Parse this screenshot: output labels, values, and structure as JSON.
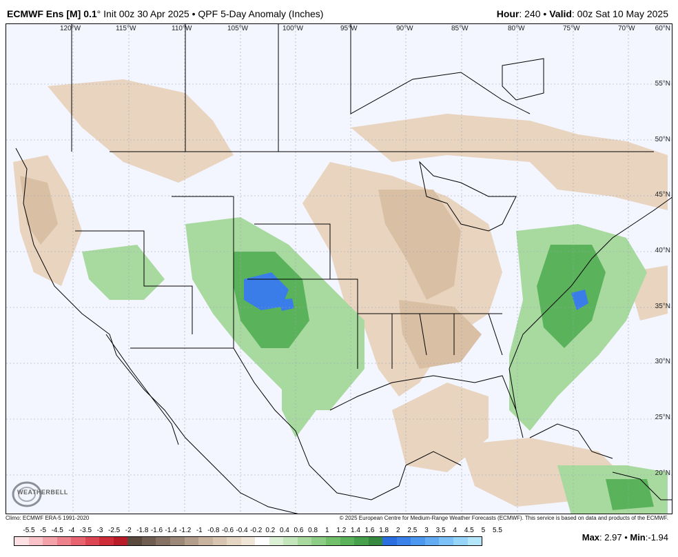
{
  "header": {
    "model": "ECMWF Ens [M] 0.1",
    "degree": "°",
    "init": " Init 00z 30 Apr 2025",
    "bullet": " • ",
    "product": "QPF 5-Day Anomaly (Inches)",
    "hour_label": "Hour",
    "hour_value": ": 240",
    "valid_label": "Valid",
    "valid_value": ": 00z Sat 10 May 2025"
  },
  "map": {
    "lon_labels": [
      "120°W",
      "115°W",
      "110°W",
      "105°W",
      "100°W",
      "95°W",
      "90°W",
      "85°W",
      "80°W",
      "75°W",
      "70°W"
    ],
    "lat_labels": [
      "60°N",
      "55°N",
      "50°N",
      "45°N",
      "40°N",
      "35°N",
      "30°N",
      "25°N",
      "20°N"
    ],
    "logo_text": "WEATHERBELL",
    "colors": {
      "ocean": "#f3f5ff",
      "land_dry": "#e8d4bf",
      "land_dry_dark": "#d9bfa4",
      "wet": "#7cc47c",
      "wet_dark": "#3f9a4f",
      "very_wet": "#3a7de8"
    }
  },
  "footer": {
    "climo": "Climo: ECMWF ERA-5 1991-2020",
    "copyright": "© 2025 European Centre for Medium-Range Weather Forecasts (ECMWF). This service is based on data and products of the ECMWF."
  },
  "colorbar": {
    "labels": [
      "-5.5",
      "-5",
      "-4.5",
      "-4",
      "-3.5",
      "-3",
      "-2.5",
      "-2",
      "-1.8",
      "-1.6",
      "-1.4",
      "-1.2",
      "-1",
      "-0.8",
      "-0.6",
      "-0.4",
      "-0.2",
      "0.2",
      "0.4",
      "0.6",
      "0.8",
      "1",
      "1.2",
      "1.4",
      "1.6",
      "1.8",
      "2",
      "2.5",
      "3",
      "3.5",
      "4",
      "4.5",
      "5",
      "5.5"
    ],
    "colors": [
      "#fde0e3",
      "#f9c2c8",
      "#f4a2aa",
      "#ee828c",
      "#e6636f",
      "#dc4653",
      "#cf2c3a",
      "#b81c28",
      "#5a4a3e",
      "#6e5d50",
      "#857264",
      "#9c8878",
      "#b39e8c",
      "#c8b39f",
      "#d8c5b1",
      "#e5d6c4",
      "#f0e6d8",
      "#ffffff",
      "#dcf0d6",
      "#c3e6bb",
      "#a8daa0",
      "#8dcd85",
      "#72c06c",
      "#5ab35a",
      "#46a04c",
      "#36893f",
      "#2a6ee0",
      "#3a82ea",
      "#4c97f0",
      "#63acf4",
      "#7cc1f7",
      "#97d4f9",
      "#b4e6fb"
    ],
    "max_label": "Max",
    "max_value": ": 2.97",
    "bullet": " • ",
    "min_label": "Min",
    "min_value": ":-1.94"
  }
}
